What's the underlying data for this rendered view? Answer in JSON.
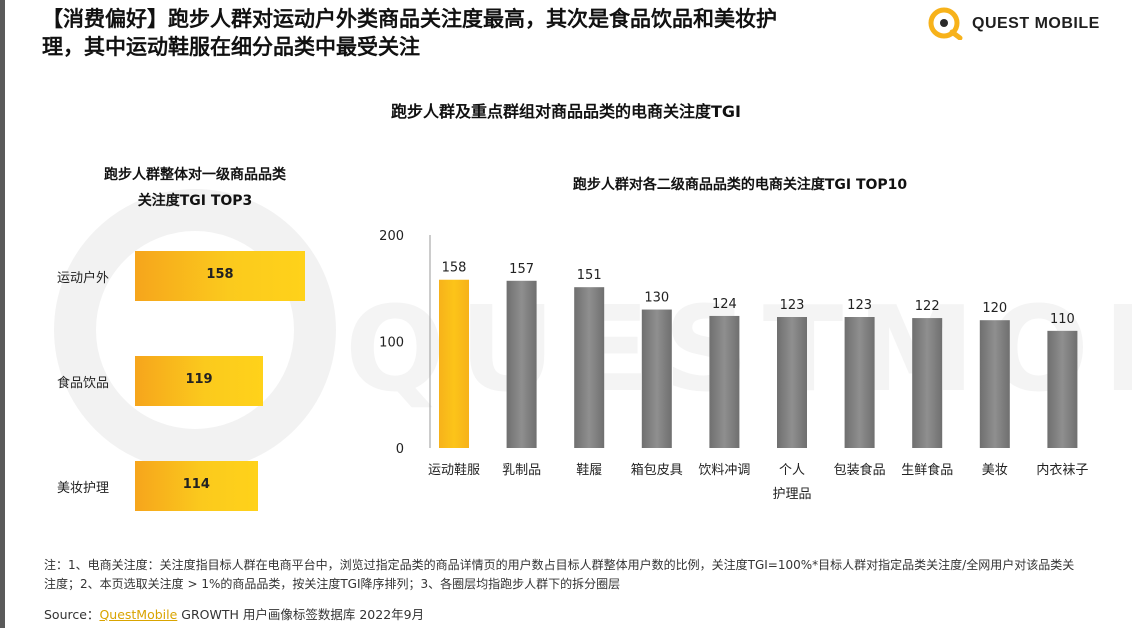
{
  "headline": {
    "line1": "【消费偏好】跑步人群对运动户外类商品关注度最高，其次是食品饮品和美妆护",
    "line2": "理，其中运动鞋服在细分品类中最受关注"
  },
  "logo": {
    "text": "QUEST MOBILE",
    "accent": "#f7b21a"
  },
  "main_title": "跑步人群及重点群组对商品品类的电商关注度TGI",
  "chart_data": [
    {
      "type": "bar",
      "orientation": "horizontal",
      "title_line1": "跑步人群整体对一级商品品类",
      "title_line2": "关注度TGI TOP3",
      "categories": [
        "运动户外",
        "食品饮品",
        "美妆护理"
      ],
      "values": [
        158,
        119,
        114
      ],
      "color": "#fbc21d"
    },
    {
      "type": "bar",
      "orientation": "vertical",
      "title": "跑步人群对各二级商品品类的电商关注度TGI TOP10",
      "categories": [
        "运动鞋服",
        "乳制品",
        "鞋履",
        "箱包皮具",
        "饮料冲调",
        "个人\n护理品",
        "包装食品",
        "生鲜食品",
        "美妆",
        "内衣袜子"
      ],
      "values": [
        158,
        157,
        151,
        130,
        124,
        123,
        123,
        122,
        120,
        110
      ],
      "yticks": [
        "0",
        "100",
        "200"
      ],
      "ylim": [
        0,
        200
      ],
      "highlight_color": "#fcc419",
      "bar_color": "#8f8f8f"
    }
  ],
  "note": "注：1、电商关注度：关注度指目标人群在电商平台中，浏览过指定品类的商品详情页的用户数占目标人群整体用户数的比例，关注度TGI=100%*目标人群对指定品类关注度/全网用户对该品类关注度；2、本页选取关注度 > 1%的商品品类，按关注度TGI降序排列；3、各圈层均指跑步人群下的拆分圈层",
  "source": {
    "prefix": "Source：",
    "link": "QuestMobile",
    "rest": " GROWTH 用户画像标签数据库 2022年9月"
  },
  "watermark": "QUESTMOBILE"
}
